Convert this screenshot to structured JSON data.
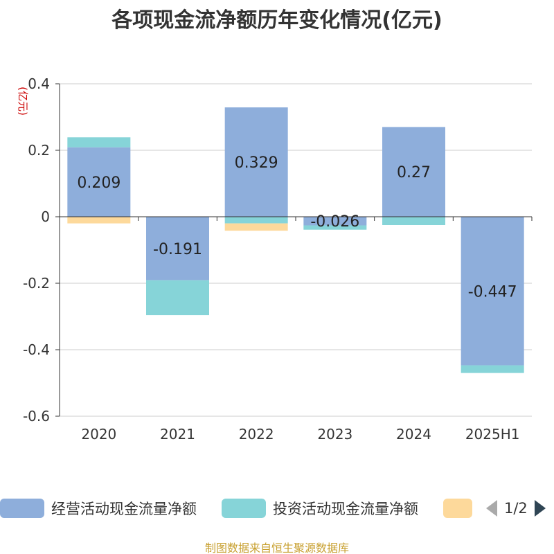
{
  "title": "各项现金流净额历年变化情况(亿元)",
  "footer": "制图数据来自恒生聚源数据库",
  "colors": {
    "operating": "#8eaedb",
    "investing": "#86d4d8",
    "financing": "#fdd99b",
    "unit_label": "#cc0000"
  },
  "legend": {
    "items": [
      {
        "label": "经营活动现金流量净额",
        "color": "#8eaedb"
      },
      {
        "label": "投资活动现金流量净额",
        "color": "#86d4d8"
      },
      {
        "label": "",
        "color": "#fdd99b"
      }
    ],
    "page": "1/2",
    "prev_icon": "triangle-left-icon",
    "next_icon": "triangle-right-icon"
  },
  "chart_data": {
    "type": "bar",
    "stacked": true,
    "categories": [
      "2020",
      "2021",
      "2022",
      "2023",
      "2024",
      "2025H1"
    ],
    "ylabel": "(亿元)",
    "ylim": [
      -0.6,
      0.4
    ],
    "yticks": [
      0.4,
      0.2,
      0,
      -0.2,
      -0.4,
      -0.6
    ],
    "ytick_labels": [
      "0.4",
      "0.2",
      "0",
      "-0.2",
      "-0.4",
      "-0.6"
    ],
    "grid": true,
    "series": [
      {
        "name": "经营活动现金流量净额",
        "color": "#8eaedb",
        "values": [
          0.209,
          -0.191,
          0.329,
          -0.026,
          0.27,
          -0.447
        ],
        "labels": [
          "0.209",
          "-0.191",
          "0.329",
          "-0.026",
          "0.27",
          "-0.447"
        ]
      },
      {
        "name": "投资活动现金流量净额",
        "color": "#86d4d8",
        "values": [
          0.03,
          -0.105,
          -0.02,
          -0.013,
          -0.025,
          -0.023
        ]
      },
      {
        "color": "#fdd99b",
        "values": [
          -0.02,
          0,
          -0.022,
          0,
          0,
          0
        ]
      }
    ]
  }
}
